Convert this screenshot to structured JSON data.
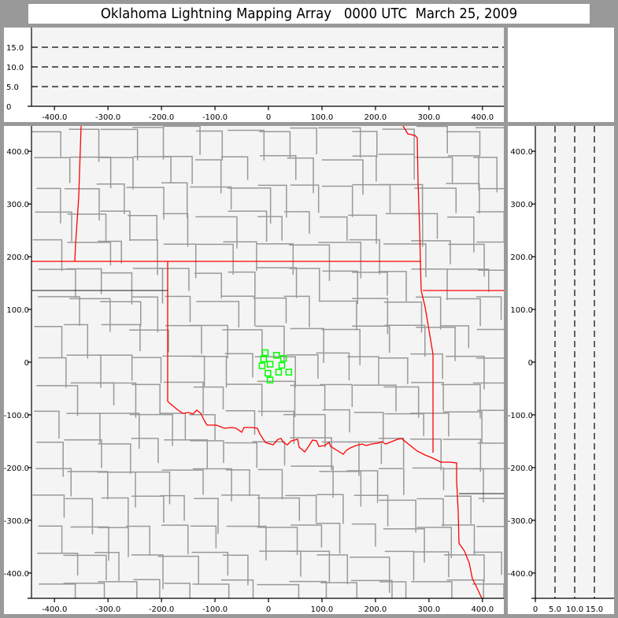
{
  "title": "Oklahoma Lightning Mapping Array   0000 UTC  March 25, 2009",
  "colors": {
    "state_border": "#ff0000",
    "county_border": "#999999",
    "station": "#00ff00",
    "plot_bg": "#f4f4f4",
    "frame": "#999999"
  },
  "top_panel": {
    "x_ticks": [
      "-400.0",
      "-300.0",
      "-200.0",
      "-100.0",
      "0",
      "100.0",
      "200.0",
      "300.0",
      "400.0"
    ],
    "x_tick_values": [
      -400,
      -300,
      -200,
      -100,
      0,
      100,
      200,
      300,
      400
    ],
    "y_ticks": [
      "0",
      "5.0",
      "10.0",
      "15.0"
    ],
    "y_tick_values": [
      0,
      5,
      10,
      15
    ],
    "y_range": [
      0,
      20
    ],
    "dashed_levels": [
      5,
      10,
      15
    ]
  },
  "right_panel": {
    "x_ticks": [
      "0",
      "5.0",
      "10.0",
      "15.0"
    ],
    "x_tick_values": [
      0,
      5,
      10,
      15
    ],
    "x_range": [
      0,
      20
    ],
    "dashed_levels": [
      5,
      10,
      15
    ]
  },
  "map": {
    "x_range": [
      -443,
      440
    ],
    "y_range": [
      -448,
      448
    ],
    "x_ticks": [
      "-400.0",
      "-300.0",
      "-200.0",
      "-100.0",
      "0",
      "100.0",
      "200.0",
      "300.0",
      "400.0"
    ],
    "x_tick_values": [
      -400,
      -300,
      -200,
      -100,
      0,
      100,
      200,
      300,
      400
    ],
    "y_ticks": [
      "400.0",
      "300.0",
      "200.0",
      "100.0",
      "0",
      "-100.0",
      "-200.0",
      "-300.0",
      "-400.0"
    ],
    "y_tick_values": [
      400,
      300,
      200,
      100,
      0,
      -100,
      -200,
      -300,
      -400
    ],
    "stations": [
      {
        "x": -6,
        "y": 18
      },
      {
        "x": 15,
        "y": 13
      },
      {
        "x": 28,
        "y": 7
      },
      {
        "x": -9,
        "y": 6
      },
      {
        "x": 3,
        "y": -4
      },
      {
        "x": -12,
        "y": -7
      },
      {
        "x": 25,
        "y": -6
      },
      {
        "x": -1,
        "y": -21
      },
      {
        "x": 19,
        "y": -19
      },
      {
        "x": 38,
        "y": -19
      },
      {
        "x": 3,
        "y": -34
      }
    ]
  }
}
